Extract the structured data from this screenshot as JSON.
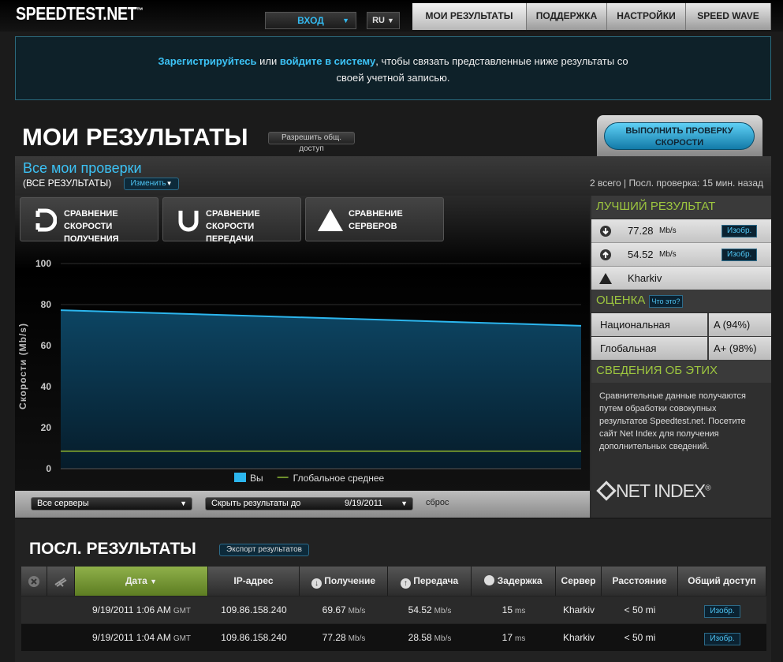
{
  "header": {
    "logo": "SPEEDTEST.NET",
    "logo_mark": "™",
    "login": "ВХОД",
    "language": "RU",
    "nav": [
      "МОИ РЕЗУЛЬТАТЫ",
      "ПОДДЕРЖКА",
      "НАСТРОЙКИ",
      "SPEED WAVE"
    ]
  },
  "banner": {
    "register": "Зарегистрируйтесь",
    "or": "или",
    "login": "войдите в систему",
    "text": ", чтобы связать представленные ниже результаты со своей учетной записью."
  },
  "title": {
    "heading": "МОИ РЕЗУЛЬТАТЫ",
    "share": "Разрешить общ. доступ",
    "run_test": "ВЫПОЛНИТЬ ПРОВЕРКУ СКОРОСТИ"
  },
  "panel": {
    "heading": "Все мои проверки",
    "filter": "(ВСЕ РЕЗУЛЬТАТЫ)",
    "change": "Изменить",
    "summary": "2 всего | Посл. проверка: 15 мин. назад",
    "tabs": [
      "СРАВНЕНИЕ СКОРОСТИ ПОЛУЧЕНИЯ",
      "СРАВНЕНИЕ СКОРОСТИ ПЕРЕДАЧИ",
      "СРАВНЕНИЕ СЕРВЕРОВ"
    ],
    "server_select": "Все серверы",
    "hide_label": "Скрыть результаты до",
    "hide_date": "9/19/2011",
    "reset": "сброс"
  },
  "chart_data": {
    "type": "area",
    "y_label": "Скорости (Mb/s)",
    "categories": [
      null,
      null
    ],
    "series": [
      {
        "name": "Вы",
        "color": "#2cb6ee",
        "values": [
          77.28,
          69.67
        ]
      },
      {
        "name": "Глобальное среднее",
        "color": "#6e8f2c",
        "type": "line",
        "values": [
          8.5,
          8.5
        ]
      }
    ],
    "ylim": [
      0,
      100
    ],
    "yticks": [
      0,
      20,
      40,
      60,
      80,
      100
    ],
    "grid": true
  },
  "sidebar": {
    "best": {
      "heading": "ЛУЧШИЙ РЕЗУЛЬТАТ",
      "download": "77.28",
      "download_unit": "Mb/s",
      "upload": "54.52",
      "upload_unit": "Mb/s",
      "image": "Изобр.",
      "server": "Kharkiv"
    },
    "rating": {
      "heading": "ОЦЕНКА",
      "what": "Что это?",
      "rows": [
        {
          "label": "Национальная",
          "grade": "A (94%)"
        },
        {
          "label": "Глобальная",
          "grade": "A+ (98%)"
        }
      ]
    },
    "about": {
      "heading": "СВЕДЕНИЯ ОБ ЭТИХ ДАННЫХ",
      "text": "Сравнительные данные получаются путем обработки совокупных результатов Speedtest.net. Посетите сайт Net Index для получения дополнительных сведений.",
      "logo": "NET INDEX",
      "logo_mark": "®"
    }
  },
  "recent": {
    "heading": "ПОСЛ. РЕЗУЛЬТАТЫ",
    "export": "Экспорт результатов",
    "columns": [
      "Дата",
      "IP-адрес",
      "Получение",
      "Передача",
      "Задержка",
      "Сервер",
      "Расстояние",
      "Общий доступ"
    ],
    "rows": [
      {
        "date": "9/19/2011 1:06 AM",
        "tz": "GMT",
        "ip": "109.86.158.240",
        "download": "69.67",
        "download_unit": "Mb/s",
        "upload": "54.52",
        "upload_unit": "Mb/s",
        "ping": "15",
        "ping_unit": "ms",
        "server": "Kharkiv",
        "distance": "< 50 mi",
        "share": "Изобр."
      },
      {
        "date": "9/19/2011 1:04 AM",
        "tz": "GMT",
        "ip": "109.86.158.240",
        "download": "77.28",
        "download_unit": "Mb/s",
        "upload": "28.58",
        "upload_unit": "Mb/s",
        "ping": "17",
        "ping_unit": "ms",
        "server": "Kharkiv",
        "distance": "< 50 mi",
        "share": "Изобр."
      }
    ]
  }
}
